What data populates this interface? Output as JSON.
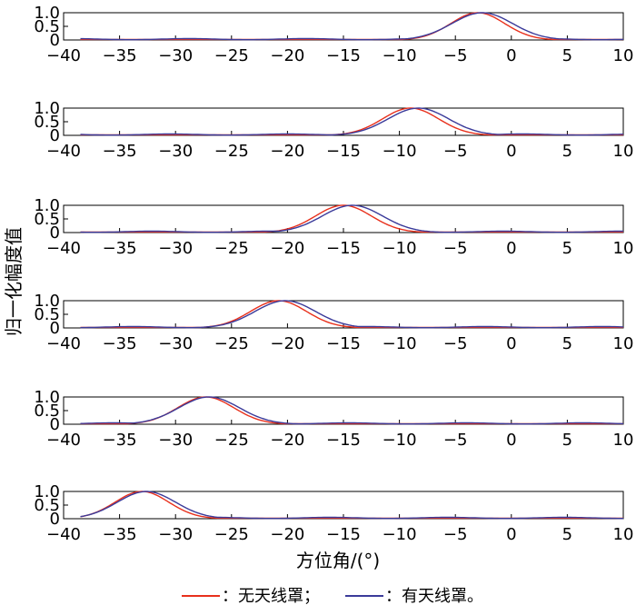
{
  "chart_data": {
    "type": "line",
    "xlabel": "方位角/(°)",
    "ylabel": "归一化幅度值",
    "xlim": [
      -40,
      10
    ],
    "ylim": [
      0,
      1
    ],
    "xticks": [
      "−40",
      "−35",
      "−30",
      "−25",
      "−20",
      "−15",
      "−10",
      "−5",
      "0",
      "5",
      "10"
    ],
    "yticks": [
      "0",
      "0.5",
      "1.0"
    ],
    "legend": [
      {
        "label": "：无天线罩；",
        "color": "#e8301c"
      },
      {
        "label": "：有天线罩。",
        "color": "#3b3b9a"
      }
    ],
    "colors": {
      "no_radome": "#e8301c",
      "with_radome": "#3b3b9a"
    },
    "panels": [
      {
        "peaks": [
          -3,
          -2.6
        ],
        "widths": [
          2.4,
          2.7
        ]
      },
      {
        "peaks": [
          -9,
          -8.3
        ],
        "widths": [
          2.5,
          2.7
        ]
      },
      {
        "peaks": [
          -15,
          -14.2
        ],
        "widths": [
          2.5,
          2.7
        ]
      },
      {
        "peaks": [
          -20.8,
          -20.2
        ],
        "widths": [
          2.5,
          2.7
        ]
      },
      {
        "peaks": [
          -27.3,
          -27
        ],
        "widths": [
          2.5,
          2.7
        ]
      },
      {
        "peaks": [
          -33,
          -32.6
        ],
        "widths": [
          2.4,
          2.6
        ]
      }
    ]
  }
}
